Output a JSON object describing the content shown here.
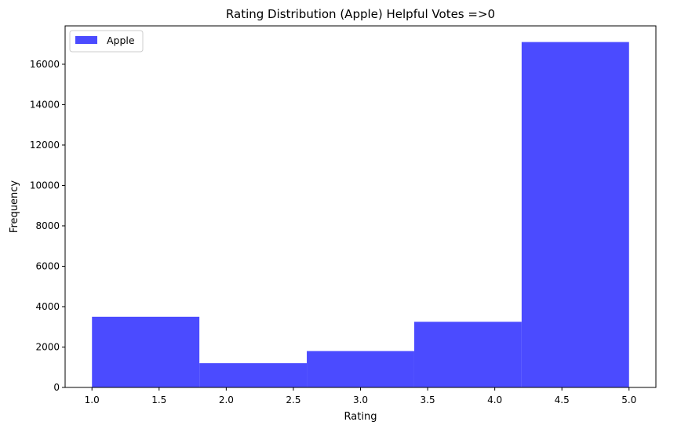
{
  "chart_data": {
    "type": "bar",
    "title": "Rating Distribution (Apple) Helpful Votes =>0",
    "xlabel": "Rating",
    "ylabel": "Frequency",
    "xlim": [
      0.8,
      5.2
    ],
    "ylim": [
      0,
      17900
    ],
    "xticks": [
      "1.0",
      "1.5",
      "2.0",
      "2.5",
      "3.0",
      "3.5",
      "4.0",
      "4.5",
      "5.0"
    ],
    "xtick_values": [
      1.0,
      1.5,
      2.0,
      2.5,
      3.0,
      3.5,
      4.0,
      4.5,
      5.0
    ],
    "yticks": [
      "0",
      "2000",
      "4000",
      "6000",
      "8000",
      "10000",
      "12000",
      "14000",
      "16000"
    ],
    "ytick_values": [
      0,
      2000,
      4000,
      6000,
      8000,
      10000,
      12000,
      14000,
      16000
    ],
    "bins": [
      {
        "start": 1.0,
        "end": 1.8,
        "value": 3500
      },
      {
        "start": 1.8,
        "end": 2.6,
        "value": 1200
      },
      {
        "start": 2.6,
        "end": 3.4,
        "value": 1800
      },
      {
        "start": 3.4,
        "end": 4.2,
        "value": 3250
      },
      {
        "start": 4.2,
        "end": 5.0,
        "value": 17100
      }
    ],
    "series": [
      {
        "name": "Apple",
        "color": "#4b4bff"
      }
    ],
    "legend": {
      "position": "upper-left",
      "label": "Apple"
    },
    "grid": false
  }
}
